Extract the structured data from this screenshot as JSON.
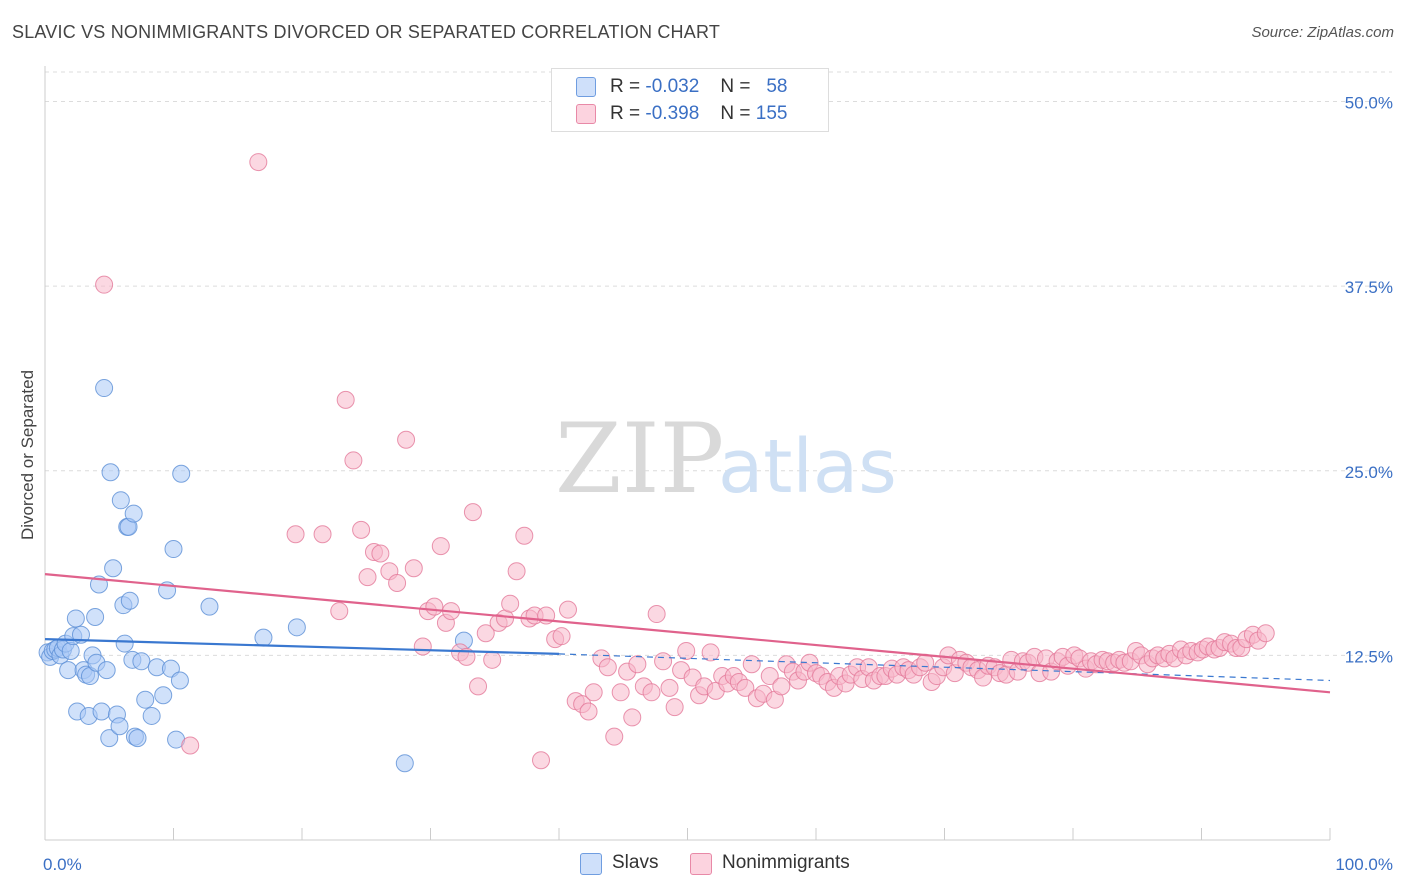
{
  "title": "SLAVIC VS NONIMMIGRANTS DIVORCED OR SEPARATED CORRELATION CHART",
  "source": "Source: ZipAtlas.com",
  "watermark": {
    "zip": "ZIP",
    "atlas": "atlas"
  },
  "legend_top": [
    {
      "r_label": "R =",
      "r_value": "-0.032",
      "n_label": "N =",
      "n_value": "58",
      "color": "#a9c8f5"
    },
    {
      "r_label": "R =",
      "r_value": "-0.398",
      "n_label": "N =",
      "n_value": "155",
      "color": "#f7b8cb"
    }
  ],
  "legend_bottom": [
    {
      "label": "Slavs",
      "color": "#a9c8f5"
    },
    {
      "label": "Nonimmigrants",
      "color": "#f7b8cb"
    }
  ],
  "chart_data": {
    "type": "scatter",
    "title": "SLAVIC VS NONIMMIGRANTS DIVORCED OR SEPARATED CORRELATION CHART",
    "xlabel": "",
    "ylabel": "Divorced or Separated",
    "xlim": [
      0,
      100
    ],
    "ylim": [
      0,
      52
    ],
    "x_tick_labels": [
      "0.0%",
      "100.0%"
    ],
    "y_ticks": [
      12.5,
      25.0,
      37.5,
      50.0
    ],
    "y_tick_labels": [
      "12.5%",
      "25.0%",
      "37.5%",
      "50.0%"
    ],
    "grid": "horizontal-dashed",
    "legend": "top-center",
    "series": [
      {
        "name": "Slavs",
        "color": "#a9c8f5",
        "edge": "#5b8fd6",
        "trend": {
          "x0": 0,
          "y0": 13.6,
          "x1": 40,
          "y1": 12.6,
          "dash_to": 100,
          "dash_y": 10.8,
          "color": "#3a78d0"
        },
        "points": [
          [
            0.2,
            12.7
          ],
          [
            0.4,
            12.4
          ],
          [
            0.6,
            12.8
          ],
          [
            0.8,
            12.9
          ],
          [
            1.0,
            13.0
          ],
          [
            1.2,
            12.5
          ],
          [
            1.4,
            12.9
          ],
          [
            1.6,
            13.3
          ],
          [
            1.8,
            11.5
          ],
          [
            2.0,
            12.8
          ],
          [
            2.2,
            13.8
          ],
          [
            2.4,
            15.0
          ],
          [
            2.5,
            8.7
          ],
          [
            2.8,
            13.9
          ],
          [
            3.0,
            11.5
          ],
          [
            3.2,
            11.2
          ],
          [
            3.4,
            8.4
          ],
          [
            3.5,
            11.1
          ],
          [
            3.7,
            12.5
          ],
          [
            3.9,
            15.1
          ],
          [
            4.0,
            12.0
          ],
          [
            4.2,
            17.3
          ],
          [
            4.4,
            8.7
          ],
          [
            4.6,
            30.6
          ],
          [
            4.8,
            11.5
          ],
          [
            5.0,
            6.9
          ],
          [
            5.1,
            24.9
          ],
          [
            5.3,
            18.4
          ],
          [
            5.6,
            8.5
          ],
          [
            5.8,
            7.7
          ],
          [
            5.9,
            23.0
          ],
          [
            6.1,
            15.9
          ],
          [
            6.2,
            13.3
          ],
          [
            6.4,
            21.2
          ],
          [
            6.5,
            21.2
          ],
          [
            6.6,
            16.2
          ],
          [
            6.8,
            12.2
          ],
          [
            6.9,
            22.1
          ],
          [
            7.0,
            7.0
          ],
          [
            7.2,
            6.9
          ],
          [
            7.5,
            12.1
          ],
          [
            7.8,
            9.5
          ],
          [
            8.3,
            8.4
          ],
          [
            8.7,
            11.7
          ],
          [
            9.2,
            9.8
          ],
          [
            9.5,
            16.9
          ],
          [
            9.8,
            11.6
          ],
          [
            10.0,
            19.7
          ],
          [
            10.2,
            6.8
          ],
          [
            10.5,
            10.8
          ],
          [
            10.6,
            24.8
          ],
          [
            12.8,
            15.8
          ],
          [
            17.0,
            13.7
          ],
          [
            19.6,
            14.4
          ],
          [
            28.0,
            5.2
          ],
          [
            32.6,
            13.5
          ]
        ]
      },
      {
        "name": "Nonimmigrants",
        "color": "#f7b8cb",
        "edge": "#e4799a",
        "trend": {
          "x0": 0,
          "y0": 18.0,
          "x1": 100,
          "y1": 10.0,
          "color": "#e0628c"
        },
        "points": [
          [
            4.6,
            37.6
          ],
          [
            11.3,
            6.4
          ],
          [
            16.6,
            45.9
          ],
          [
            19.5,
            20.7
          ],
          [
            21.6,
            20.7
          ],
          [
            22.9,
            15.5
          ],
          [
            23.4,
            29.8
          ],
          [
            24.0,
            25.7
          ],
          [
            24.6,
            21.0
          ],
          [
            25.1,
            17.8
          ],
          [
            25.6,
            19.5
          ],
          [
            26.1,
            19.4
          ],
          [
            26.8,
            18.2
          ],
          [
            27.4,
            17.4
          ],
          [
            28.1,
            27.1
          ],
          [
            28.7,
            18.4
          ],
          [
            29.4,
            13.1
          ],
          [
            29.8,
            15.5
          ],
          [
            30.3,
            15.8
          ],
          [
            30.8,
            19.9
          ],
          [
            31.2,
            14.7
          ],
          [
            31.6,
            15.5
          ],
          [
            32.3,
            12.7
          ],
          [
            32.8,
            12.4
          ],
          [
            33.3,
            22.2
          ],
          [
            33.7,
            10.4
          ],
          [
            34.3,
            14.0
          ],
          [
            34.8,
            12.2
          ],
          [
            35.3,
            14.7
          ],
          [
            35.8,
            15.0
          ],
          [
            36.2,
            16.0
          ],
          [
            36.7,
            18.2
          ],
          [
            37.3,
            20.6
          ],
          [
            37.7,
            15.0
          ],
          [
            38.1,
            15.2
          ],
          [
            38.6,
            5.4
          ],
          [
            39.0,
            15.2
          ],
          [
            39.7,
            13.6
          ],
          [
            40.2,
            13.8
          ],
          [
            40.7,
            15.6
          ],
          [
            41.3,
            9.4
          ],
          [
            41.8,
            9.2
          ],
          [
            42.3,
            8.7
          ],
          [
            42.7,
            10.0
          ],
          [
            43.3,
            12.3
          ],
          [
            43.8,
            11.7
          ],
          [
            44.3,
            7.0
          ],
          [
            44.8,
            10.0
          ],
          [
            45.3,
            11.4
          ],
          [
            45.7,
            8.3
          ],
          [
            46.1,
            11.9
          ],
          [
            46.6,
            10.4
          ],
          [
            47.2,
            10.0
          ],
          [
            47.6,
            15.3
          ],
          [
            48.1,
            12.1
          ],
          [
            48.6,
            10.3
          ],
          [
            49.0,
            9.0
          ],
          [
            49.5,
            11.5
          ],
          [
            49.9,
            12.8
          ],
          [
            50.4,
            11.0
          ],
          [
            50.9,
            9.8
          ],
          [
            51.3,
            10.4
          ],
          [
            51.8,
            12.7
          ],
          [
            52.2,
            10.1
          ],
          [
            52.7,
            11.1
          ],
          [
            53.1,
            10.6
          ],
          [
            53.6,
            11.1
          ],
          [
            54.0,
            10.7
          ],
          [
            54.5,
            10.3
          ],
          [
            55.0,
            11.9
          ],
          [
            55.4,
            9.6
          ],
          [
            55.9,
            9.9
          ],
          [
            56.4,
            11.1
          ],
          [
            56.8,
            9.5
          ],
          [
            57.3,
            10.4
          ],
          [
            57.7,
            11.9
          ],
          [
            58.2,
            11.4
          ],
          [
            58.6,
            10.8
          ],
          [
            59.1,
            11.4
          ],
          [
            59.5,
            12.0
          ],
          [
            60.0,
            11.3
          ],
          [
            60.4,
            11.1
          ],
          [
            60.9,
            10.7
          ],
          [
            61.4,
            10.3
          ],
          [
            61.8,
            11.1
          ],
          [
            62.3,
            10.6
          ],
          [
            62.7,
            11.2
          ],
          [
            63.2,
            11.7
          ],
          [
            63.6,
            10.9
          ],
          [
            64.1,
            11.7
          ],
          [
            64.5,
            10.8
          ],
          [
            65.0,
            11.1
          ],
          [
            65.4,
            11.1
          ],
          [
            65.9,
            11.6
          ],
          [
            66.3,
            11.2
          ],
          [
            66.8,
            11.7
          ],
          [
            67.2,
            11.5
          ],
          [
            67.6,
            11.2
          ],
          [
            68.1,
            11.7
          ],
          [
            68.5,
            12.0
          ],
          [
            69.0,
            10.7
          ],
          [
            69.4,
            11.1
          ],
          [
            69.9,
            11.7
          ],
          [
            70.3,
            12.5
          ],
          [
            70.8,
            11.3
          ],
          [
            71.2,
            12.2
          ],
          [
            71.7,
            12.0
          ],
          [
            72.1,
            11.7
          ],
          [
            72.6,
            11.5
          ],
          [
            73.0,
            11.0
          ],
          [
            73.4,
            11.8
          ],
          [
            73.9,
            11.7
          ],
          [
            74.3,
            11.3
          ],
          [
            74.8,
            11.2
          ],
          [
            75.2,
            12.2
          ],
          [
            75.7,
            11.4
          ],
          [
            76.1,
            12.1
          ],
          [
            76.5,
            12.0
          ],
          [
            77.0,
            12.4
          ],
          [
            77.4,
            11.3
          ],
          [
            77.9,
            12.3
          ],
          [
            78.3,
            11.4
          ],
          [
            78.8,
            12.1
          ],
          [
            79.2,
            12.4
          ],
          [
            79.6,
            11.8
          ],
          [
            80.1,
            12.5
          ],
          [
            80.5,
            12.3
          ],
          [
            81.0,
            11.6
          ],
          [
            81.4,
            12.1
          ],
          [
            81.8,
            11.9
          ],
          [
            82.3,
            12.2
          ],
          [
            82.7,
            12.1
          ],
          [
            83.2,
            12.0
          ],
          [
            83.6,
            12.2
          ],
          [
            84.0,
            12.0
          ],
          [
            84.5,
            12.1
          ],
          [
            84.9,
            12.8
          ],
          [
            85.3,
            12.5
          ],
          [
            85.8,
            11.9
          ],
          [
            86.2,
            12.3
          ],
          [
            86.6,
            12.5
          ],
          [
            87.1,
            12.3
          ],
          [
            87.5,
            12.6
          ],
          [
            87.9,
            12.3
          ],
          [
            88.4,
            12.9
          ],
          [
            88.8,
            12.5
          ],
          [
            89.2,
            12.8
          ],
          [
            89.7,
            12.7
          ],
          [
            90.1,
            12.9
          ],
          [
            90.5,
            13.1
          ],
          [
            91.0,
            12.9
          ],
          [
            91.4,
            13.0
          ],
          [
            91.8,
            13.4
          ],
          [
            92.3,
            13.3
          ],
          [
            92.7,
            13.0
          ],
          [
            93.1,
            13.0
          ],
          [
            93.5,
            13.6
          ],
          [
            94.0,
            13.9
          ],
          [
            94.4,
            13.5
          ],
          [
            95.0,
            14.0
          ]
        ]
      }
    ]
  }
}
